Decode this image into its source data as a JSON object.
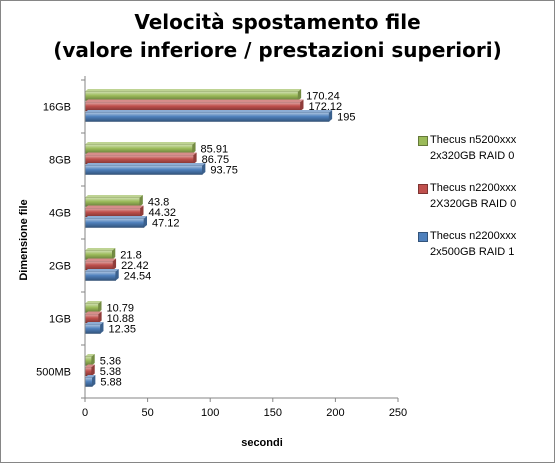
{
  "chart_data": {
    "type": "bar",
    "orientation": "horizontal",
    "title_lines": [
      "Velocità spostamento file",
      "(valore inferiore / prestazioni superiori)"
    ],
    "xlabel": "secondi",
    "ylabel": "Dimensione file",
    "categories": [
      "16GB",
      "8GB",
      "4GB",
      "2GB",
      "1GB",
      "500MB"
    ],
    "xlim": [
      0,
      250
    ],
    "xticks": [
      0,
      50,
      100,
      150,
      200,
      250
    ],
    "grid": false,
    "legend_position": "right",
    "series": [
      {
        "name_lines": [
          "Thecus n5200xxx",
          "2x320GB RAID 0"
        ],
        "color": "#9BBB59",
        "values": [
          170.24,
          85.91,
          43.8,
          21.8,
          10.79,
          5.36
        ],
        "labels": [
          "170.24",
          "85.91",
          "43.8",
          "21.8",
          "10.79",
          "5.36"
        ]
      },
      {
        "name_lines": [
          "Thecus n2200xxx",
          "2X320GB RAID 0"
        ],
        "color": "#C0504D",
        "values": [
          172.12,
          86.75,
          44.32,
          22.42,
          10.88,
          5.38
        ],
        "labels": [
          "172.12",
          "86.75",
          "44.32",
          "22.42",
          "10.88",
          "5.38"
        ]
      },
      {
        "name_lines": [
          "Thecus n2200xxx",
          "2x500GB RAID 1"
        ],
        "color": "#4F81BD",
        "values": [
          195,
          93.75,
          47.12,
          24.54,
          12.35,
          5.88
        ],
        "labels": [
          "195",
          "93.75",
          "47.12",
          "24.54",
          "12.35",
          "5.88"
        ]
      }
    ]
  }
}
